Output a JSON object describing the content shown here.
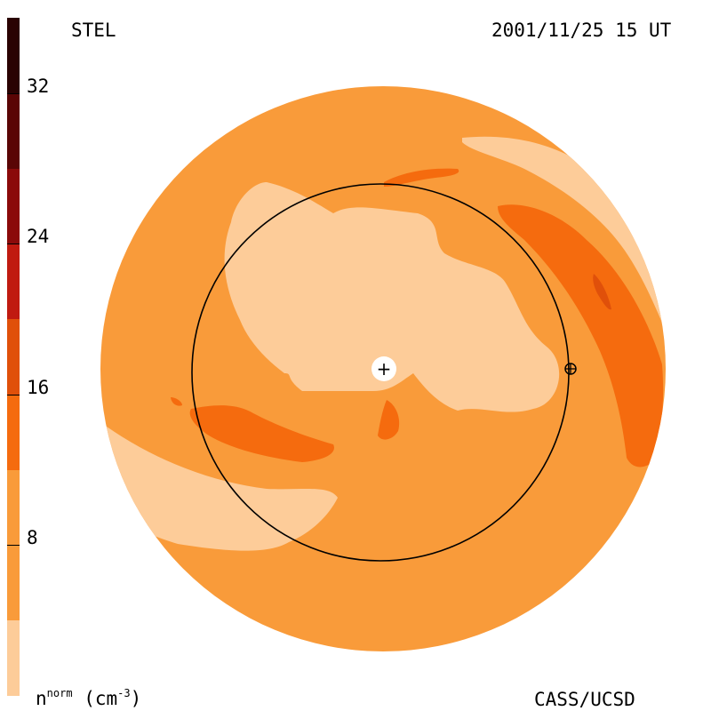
{
  "header": {
    "instrument": "STEL",
    "datetime": "2001/11/25 15 UT"
  },
  "footer": {
    "unit_var": "n",
    "unit_sup": "norm",
    "unit_text": "(cm",
    "unit_exp": "-3",
    "unit_close": ")",
    "credit": "CASS/UCSD"
  },
  "colorbar": {
    "ticks": [
      {
        "label": "32",
        "value": 32
      },
      {
        "label": "24",
        "value": 24
      },
      {
        "label": "16",
        "value": 16
      },
      {
        "label": "8",
        "value": 8
      }
    ],
    "range": [
      0,
      36
    ],
    "bands": [
      {
        "from": 0,
        "to": 4,
        "color": "#fdcc99"
      },
      {
        "from": 4,
        "to": 12,
        "color": "#f99b3a"
      },
      {
        "from": 12,
        "to": 16,
        "color": "#f56b0e"
      },
      {
        "from": 16,
        "to": 20,
        "color": "#e0500a"
      },
      {
        "from": 20,
        "to": 24,
        "color": "#c01a10"
      },
      {
        "from": 24,
        "to": 28,
        "color": "#8b0a0a"
      },
      {
        "from": 28,
        "to": 32,
        "color": "#5a0505"
      },
      {
        "from": 32,
        "to": 36,
        "color": "#2a0202"
      }
    ]
  },
  "colors": {
    "background_level": "#f99b3a",
    "low_level": "#fdcc99",
    "high_level": "#f56b0e",
    "peak_level": "#e0500a",
    "orbit_line": "#000000"
  }
}
